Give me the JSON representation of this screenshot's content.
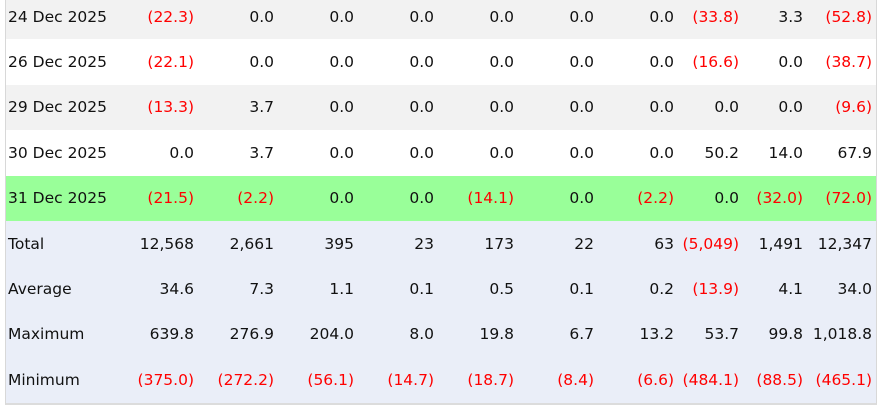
{
  "colors": {
    "highlight_row": "#99ff99",
    "summary_bg": "#eaeef8",
    "stripe": "#f2f2f2",
    "negative": "#ff0000"
  },
  "rows": [
    {
      "label": "24 Dec 2025",
      "style": "odd",
      "values": [
        "(22.3)",
        "0.0",
        "0.0",
        "0.0",
        "0.0",
        "0.0",
        "0.0",
        "(33.8)",
        "3.3",
        "(52.8)"
      ]
    },
    {
      "label": "26 Dec 2025",
      "style": "even",
      "values": [
        "(22.1)",
        "0.0",
        "0.0",
        "0.0",
        "0.0",
        "0.0",
        "0.0",
        "(16.6)",
        "0.0",
        "(38.7)"
      ]
    },
    {
      "label": "29 Dec 2025",
      "style": "odd",
      "values": [
        "(13.3)",
        "3.7",
        "0.0",
        "0.0",
        "0.0",
        "0.0",
        "0.0",
        "0.0",
        "0.0",
        "(9.6)"
      ]
    },
    {
      "label": "30 Dec 2025",
      "style": "even",
      "values": [
        "0.0",
        "3.7",
        "0.0",
        "0.0",
        "0.0",
        "0.0",
        "0.0",
        "50.2",
        "14.0",
        "67.9"
      ]
    },
    {
      "label": "31 Dec 2025",
      "style": "hl",
      "values": [
        "(21.5)",
        "(2.2)",
        "0.0",
        "0.0",
        "(14.1)",
        "0.0",
        "(2.2)",
        "0.0",
        "(32.0)",
        "(72.0)"
      ]
    }
  ],
  "summary": [
    {
      "label": "Total",
      "values": [
        "12,568",
        "2,661",
        "395",
        "23",
        "173",
        "22",
        "63",
        "(5,049)",
        "1,491",
        "12,347"
      ]
    },
    {
      "label": "Average",
      "values": [
        "34.6",
        "7.3",
        "1.1",
        "0.1",
        "0.5",
        "0.1",
        "0.2",
        "(13.9)",
        "4.1",
        "34.0"
      ]
    },
    {
      "label": "Maximum",
      "values": [
        "639.8",
        "276.9",
        "204.0",
        "8.0",
        "19.8",
        "6.7",
        "13.2",
        "53.7",
        "99.8",
        "1,018.8"
      ]
    },
    {
      "label": "Minimum",
      "values": [
        "(375.0)",
        "(272.2)",
        "(56.1)",
        "(14.7)",
        "(18.7)",
        "(8.4)",
        "(6.6)",
        "(484.1)",
        "(88.5)",
        "(465.1)"
      ]
    }
  ]
}
